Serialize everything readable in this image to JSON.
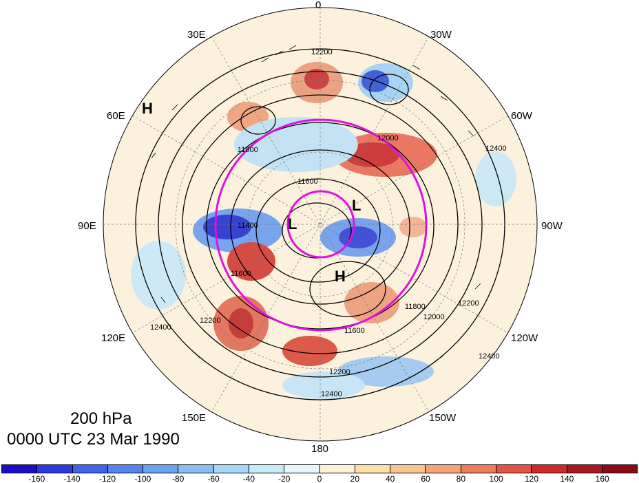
{
  "map": {
    "level_label": "200 hPa",
    "time_label": "0000 UTC 23 Mar 1990",
    "longitude_labels": [
      "0",
      "30W",
      "60W",
      "90W",
      "120W",
      "150W",
      "180",
      "150E",
      "120E",
      "90E",
      "60E",
      "30E"
    ],
    "contour_labels": [
      "12200",
      "12000",
      "11800",
      "11600",
      "11400",
      "11600",
      "11600",
      "12200",
      "12400",
      "12400",
      "12200",
      "12400",
      "11800",
      "12000",
      "12200",
      "12400"
    ],
    "pressure_centers": [
      "H",
      "L",
      "L",
      "H"
    ]
  },
  "colorbar": {
    "ticks": [
      "-160",
      "-140",
      "-120",
      "-100",
      "-80",
      "-60",
      "-40",
      "-20",
      "0",
      "20",
      "40",
      "60",
      "80",
      "100",
      "120",
      "140",
      "160"
    ],
    "colors": [
      "#1a0fc8",
      "#2a3ce0",
      "#3f63ea",
      "#5484ee",
      "#6aa3f2",
      "#87bff5",
      "#a6d6f8",
      "#c8ebfa",
      "#e6f6fb",
      "#fbf3d8",
      "#fbe1a8",
      "#f7c690",
      "#f3a576",
      "#ec7e5c",
      "#e25443",
      "#cc2a2c",
      "#aa1620",
      "#8a0a16"
    ]
  }
}
